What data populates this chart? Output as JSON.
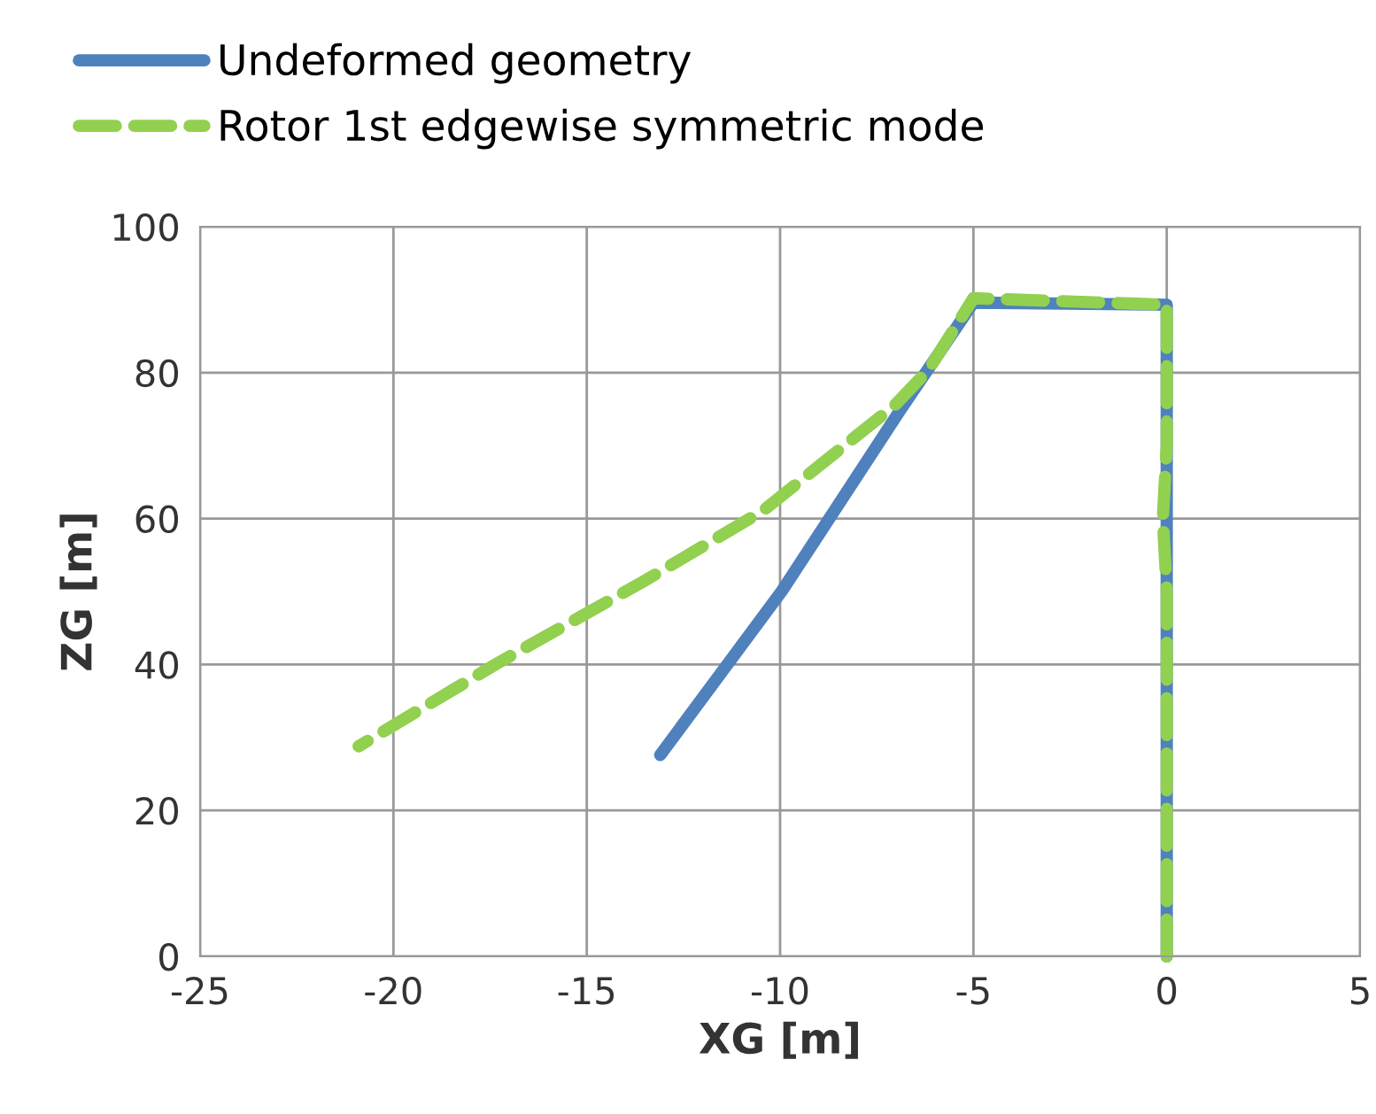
{
  "chart_data": {
    "type": "line",
    "xlabel": "XG [m]",
    "ylabel": "ZG [m]",
    "xlim": [
      -25,
      5
    ],
    "xticks": [
      -25,
      -20,
      -15,
      -10,
      -5,
      0,
      5
    ],
    "ylim": [
      0,
      100
    ],
    "yticks": [
      0,
      20,
      40,
      60,
      80,
      100
    ],
    "grid": true,
    "legend": "top left",
    "series": [
      {
        "name": "Undeformed geometry",
        "color": "#4f81bd",
        "line_style": "solid",
        "x": [
          0,
          0,
          -5.0,
          -6.9,
          -9.95,
          -13.1
        ],
        "values": [
          0,
          89.3,
          89.6,
          74.8,
          50.1,
          27.6
        ]
      },
      {
        "name": "Rotor 1st edgewise symmetric mode",
        "color": "#92d050",
        "line_style": "dashed",
        "x": [
          0,
          0,
          -0.1,
          0,
          0,
          -5.0,
          -6.16,
          -7.04,
          -10.46,
          -13.56,
          -17.3,
          -20.9
        ],
        "values": [
          0,
          50,
          60,
          70,
          89.3,
          90.2,
          80.4,
          75.5,
          61.0,
          51.3,
          40.2,
          28.8
        ]
      }
    ]
  }
}
